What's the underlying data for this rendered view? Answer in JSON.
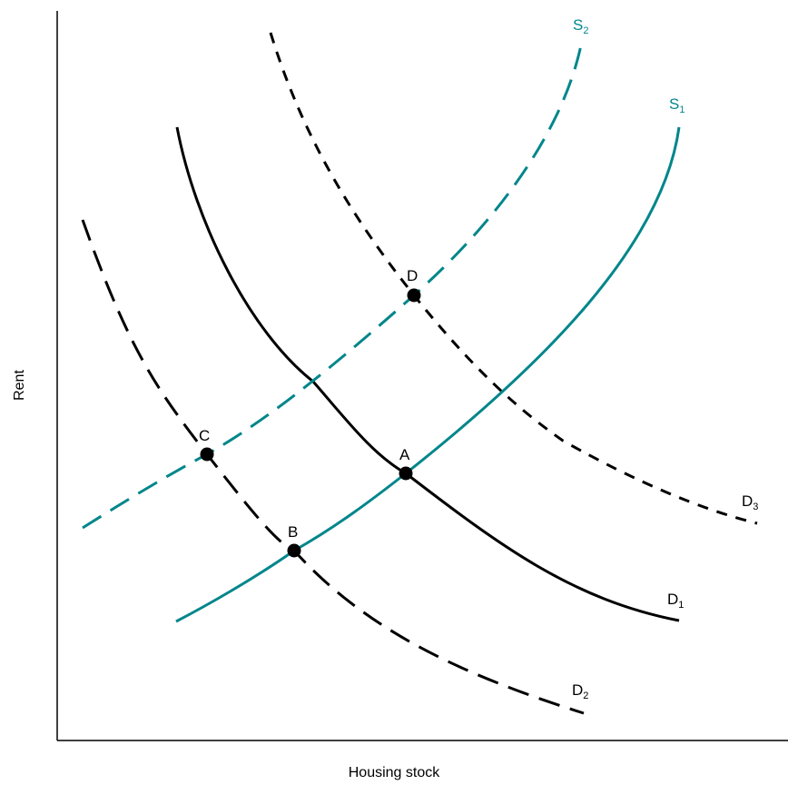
{
  "axes": {
    "x_title": "Housing stock",
    "y_title": "Rent"
  },
  "colors": {
    "demand": "#000000",
    "supply": "#00868b",
    "axis": "#000000"
  },
  "curves": [
    {
      "id": "d1",
      "label_main": "D",
      "label_sub": "1",
      "kind": "demand",
      "style": "solid"
    },
    {
      "id": "d2",
      "label_main": "D",
      "label_sub": "2",
      "kind": "demand",
      "style": "dashed"
    },
    {
      "id": "d3",
      "label_main": "D",
      "label_sub": "3",
      "kind": "demand",
      "style": "dashed-short"
    },
    {
      "id": "s1",
      "label_main": "S",
      "label_sub": "1",
      "kind": "supply",
      "style": "solid"
    },
    {
      "id": "s2",
      "label_main": "S",
      "label_sub": "2",
      "kind": "supply",
      "style": "dashed"
    }
  ],
  "points": [
    {
      "id": "a",
      "label": "A"
    },
    {
      "id": "b",
      "label": "B"
    },
    {
      "id": "c",
      "label": "C"
    },
    {
      "id": "d",
      "label": "D"
    }
  ]
}
